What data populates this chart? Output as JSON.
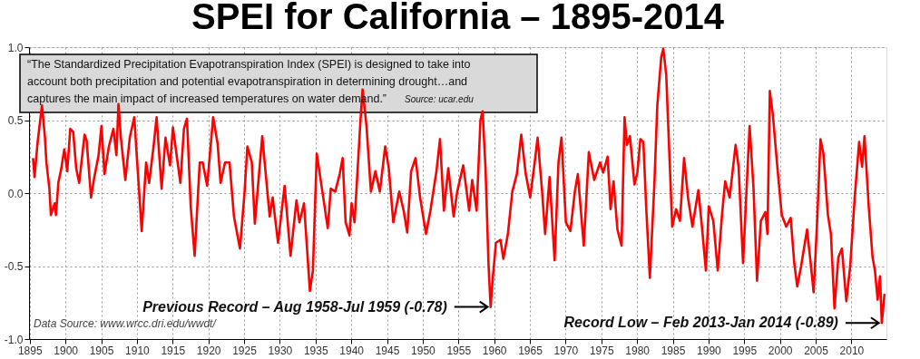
{
  "chart_data": {
    "type": "line",
    "title": "SPEI for California – 1895-2014",
    "x": [
      1895.46,
      1895.67,
      1896.08,
      1896.71,
      1897.13,
      1897.33,
      1897.75,
      1897.96,
      1898.5,
      1898.67,
      1899.0,
      1899.42,
      1899.83,
      1900.25,
      1900.67,
      1901.08,
      1901.5,
      1901.92,
      1902.67,
      1902.96,
      1903.58,
      1904.0,
      1904.63,
      1905.04,
      1905.46,
      1906.08,
      1906.71,
      1907.13,
      1907.42,
      1907.75,
      1908.38,
      1909.0,
      1909.63,
      1910.04,
      1910.67,
      1911.29,
      1911.71,
      1912.33,
      1912.75,
      1913.46,
      1914.0,
      1914.63,
      1915.04,
      1916.08,
      1916.58,
      1917.0,
      1917.54,
      1918.08,
      1918.79,
      1919.21,
      1919.83,
      1920.67,
      1921.29,
      1921.71,
      1922.33,
      1922.96,
      1923.58,
      1924.42,
      1925.04,
      1925.46,
      1926.08,
      1926.5,
      1927.54,
      1928.58,
      1929.0,
      1929.75,
      1930.67,
      1931.5,
      1932.33,
      1932.75,
      1933.38,
      1934.21,
      1934.63,
      1935.17,
      1936.08,
      1936.71,
      1937.13,
      1937.75,
      1938.38,
      1938.79,
      1939.21,
      1939.75,
      1940.04,
      1940.46,
      1941.29,
      1941.58,
      1942.13,
      1942.75,
      1943.38,
      1944.0,
      1944.75,
      1945.25,
      1945.88,
      1946.71,
      1947.33,
      1947.83,
      1948.38,
      1949.0,
      1949.63,
      1950.46,
      1951.08,
      1951.92,
      1952.42,
      1952.96,
      1953.58,
      1954.33,
      1954.83,
      1955.67,
      1956.5,
      1956.92,
      1957.54,
      1958.08,
      1958.38,
      1958.79,
      1959.21,
      1959.5,
      1959.83,
      1960.25,
      1960.88,
      1961.29,
      1961.92,
      1962.54,
      1963.17,
      1963.79,
      1964.42,
      1965.04,
      1965.67,
      1966.08,
      1966.71,
      1967.13,
      1967.75,
      1968.46,
      1969.0,
      1969.42,
      1970.04,
      1970.67,
      1971.29,
      1971.71,
      1972.54,
      1973.25,
      1974.0,
      1974.83,
      1975.25,
      1975.88,
      1976.29,
      1976.71,
      1977.25,
      1977.83,
      1978.25,
      1978.58,
      1979.0,
      1979.63,
      1980.04,
      1980.46,
      1980.88,
      1981.29,
      1981.79,
      1982.42,
      1982.83,
      1983.38,
      1983.67,
      1984.08,
      1984.5,
      1984.92,
      1985.46,
      1986.0,
      1986.58,
      1987.13,
      1987.75,
      1988.58,
      1989.08,
      1989.63,
      1990.04,
      1990.67,
      1991.29,
      1991.92,
      1992.33,
      1992.96,
      1993.79,
      1994.21,
      1994.83,
      1995.25,
      1995.75,
      1996.29,
      1996.79,
      1997.33,
      1997.96,
      1998.25,
      1998.58,
      1999.0,
      1999.63,
      2000.25,
      2000.88,
      2001.5,
      2002.0,
      2002.42,
      2002.96,
      2003.79,
      2004.21,
      2004.71,
      2005.17,
      2005.67,
      2006.08,
      2006.71,
      2007.13,
      2007.63,
      2008.17,
      2008.67,
      2009.29,
      2009.83,
      2010.46,
      2011.08,
      2011.5,
      2011.83,
      2012.42,
      2012.96,
      2013.29,
      2013.67,
      2014.0,
      2014.25,
      2014.63
    ],
    "series": [
      {
        "color": "#ff0000",
        "values": [
          0.24,
          0.11,
          0.34,
          0.6,
          0.38,
          0.21,
          0.03,
          -0.15,
          -0.07,
          -0.15,
          0.07,
          0.17,
          0.3,
          0.15,
          0.44,
          0.42,
          0.17,
          0.07,
          0.4,
          0.36,
          -0.03,
          0.1,
          0.26,
          0.46,
          0.13,
          0.32,
          0.44,
          0.26,
          0.61,
          0.38,
          0.09,
          0.38,
          0.52,
          0.21,
          -0.26,
          0.21,
          0.07,
          0.32,
          0.52,
          0.03,
          0.38,
          0.19,
          0.45,
          0.07,
          0.44,
          0.51,
          -0.1,
          -0.43,
          0.21,
          0.21,
          0.05,
          0.52,
          0.34,
          0.07,
          0.21,
          0.21,
          -0.16,
          -0.38,
          -0.01,
          0.32,
          0.21,
          -0.21,
          0.39,
          -0.16,
          -0.03,
          -0.34,
          0.05,
          -0.43,
          -0.05,
          -0.2,
          -0.07,
          -0.67,
          -0.53,
          0.27,
          -0.03,
          -0.24,
          0.03,
          0.01,
          0.13,
          0.24,
          -0.2,
          -0.29,
          -0.07,
          -0.2,
          0.5,
          0.71,
          0.46,
          0.01,
          0.15,
          0.01,
          0.32,
          0.17,
          -0.2,
          0.01,
          -0.12,
          -0.27,
          0.15,
          0.24,
          -0.03,
          -0.28,
          -0.12,
          0.15,
          0.37,
          -0.12,
          0.17,
          -0.16,
          0.01,
          0.19,
          -0.12,
          0.09,
          -0.12,
          0.5,
          0.56,
          0.17,
          -0.49,
          -0.78,
          -0.57,
          -0.34,
          -0.32,
          -0.45,
          -0.28,
          0.01,
          0.13,
          0.4,
          0.13,
          -0.03,
          0.21,
          0.38,
          0.01,
          -0.28,
          0.11,
          -0.46,
          0.21,
          0.38,
          -0.2,
          -0.26,
          0.01,
          0.13,
          -0.36,
          0.28,
          0.09,
          0.21,
          0.14,
          0.25,
          -0.11,
          0.08,
          -0.25,
          -0.36,
          0.52,
          0.33,
          0.39,
          0.06,
          0.14,
          0.37,
          0.35,
          -0.11,
          -0.58,
          0.06,
          0.6,
          0.93,
          0.99,
          0.81,
          0.29,
          -0.23,
          -0.11,
          -0.19,
          0.24,
          -0.03,
          -0.23,
          0.02,
          -0.23,
          -0.53,
          -0.09,
          -0.19,
          -0.53,
          -0.13,
          0.08,
          -0.03,
          0.33,
          0.18,
          -0.48,
          -0.05,
          0.46,
          0.04,
          -0.6,
          -0.19,
          -0.13,
          -0.28,
          0.7,
          0.54,
          0.18,
          -0.15,
          -0.23,
          -0.17,
          -0.48,
          -0.64,
          -0.5,
          -0.25,
          -0.44,
          -0.68,
          -0.23,
          0.37,
          0.27,
          -0.15,
          -0.28,
          -0.79,
          -0.44,
          -0.38,
          -0.74,
          -0.5,
          -0.03,
          0.35,
          0.18,
          0.39,
          -0.09,
          -0.44,
          -0.53,
          -0.73,
          -0.57,
          -0.89,
          -0.69
        ]
      }
    ],
    "xlim": [
      1894.9,
      2014.9
    ],
    "xticks": [
      1895,
      1900,
      1905,
      1910,
      1915,
      1920,
      1925,
      1930,
      1935,
      1940,
      1945,
      1950,
      1955,
      1960,
      1965,
      1970,
      1975,
      1980,
      1985,
      1990,
      1995,
      2000,
      2005,
      2010
    ],
    "ylim": [
      -1,
      1
    ],
    "yticks": [
      {
        "value": -1,
        "label": "-1.0"
      },
      {
        "value": -0.5,
        "label": "-0.5"
      },
      {
        "value": 0,
        "label": "0.0"
      },
      {
        "value": 0.5,
        "label": "0.5"
      },
      {
        "value": 1,
        "label": "1.0"
      }
    ],
    "grid": true,
    "line_style": "solid",
    "marker": "none",
    "annotations": [
      "“The Standardized Precipitation Evapotranspiration Index (SPEI) is designed to take into\naccount both precipitation and potential evapotranspiration in determining drought…and\ncaptures the main impact of increased temperatures on water demand.”",
      "Source: ucar.edu",
      {
        "text": "Previous Record – Aug 1958-Jul 1959 (-0.78)",
        "x": 1959.5,
        "y": -0.78
      },
      "Data Source: www.wrcc.dri.edu/wwdt/",
      {
        "text": "Record Low – Feb 2013-Jan 2014 (-0.89)",
        "x": 2014.25,
        "y": -0.89
      }
    ]
  }
}
